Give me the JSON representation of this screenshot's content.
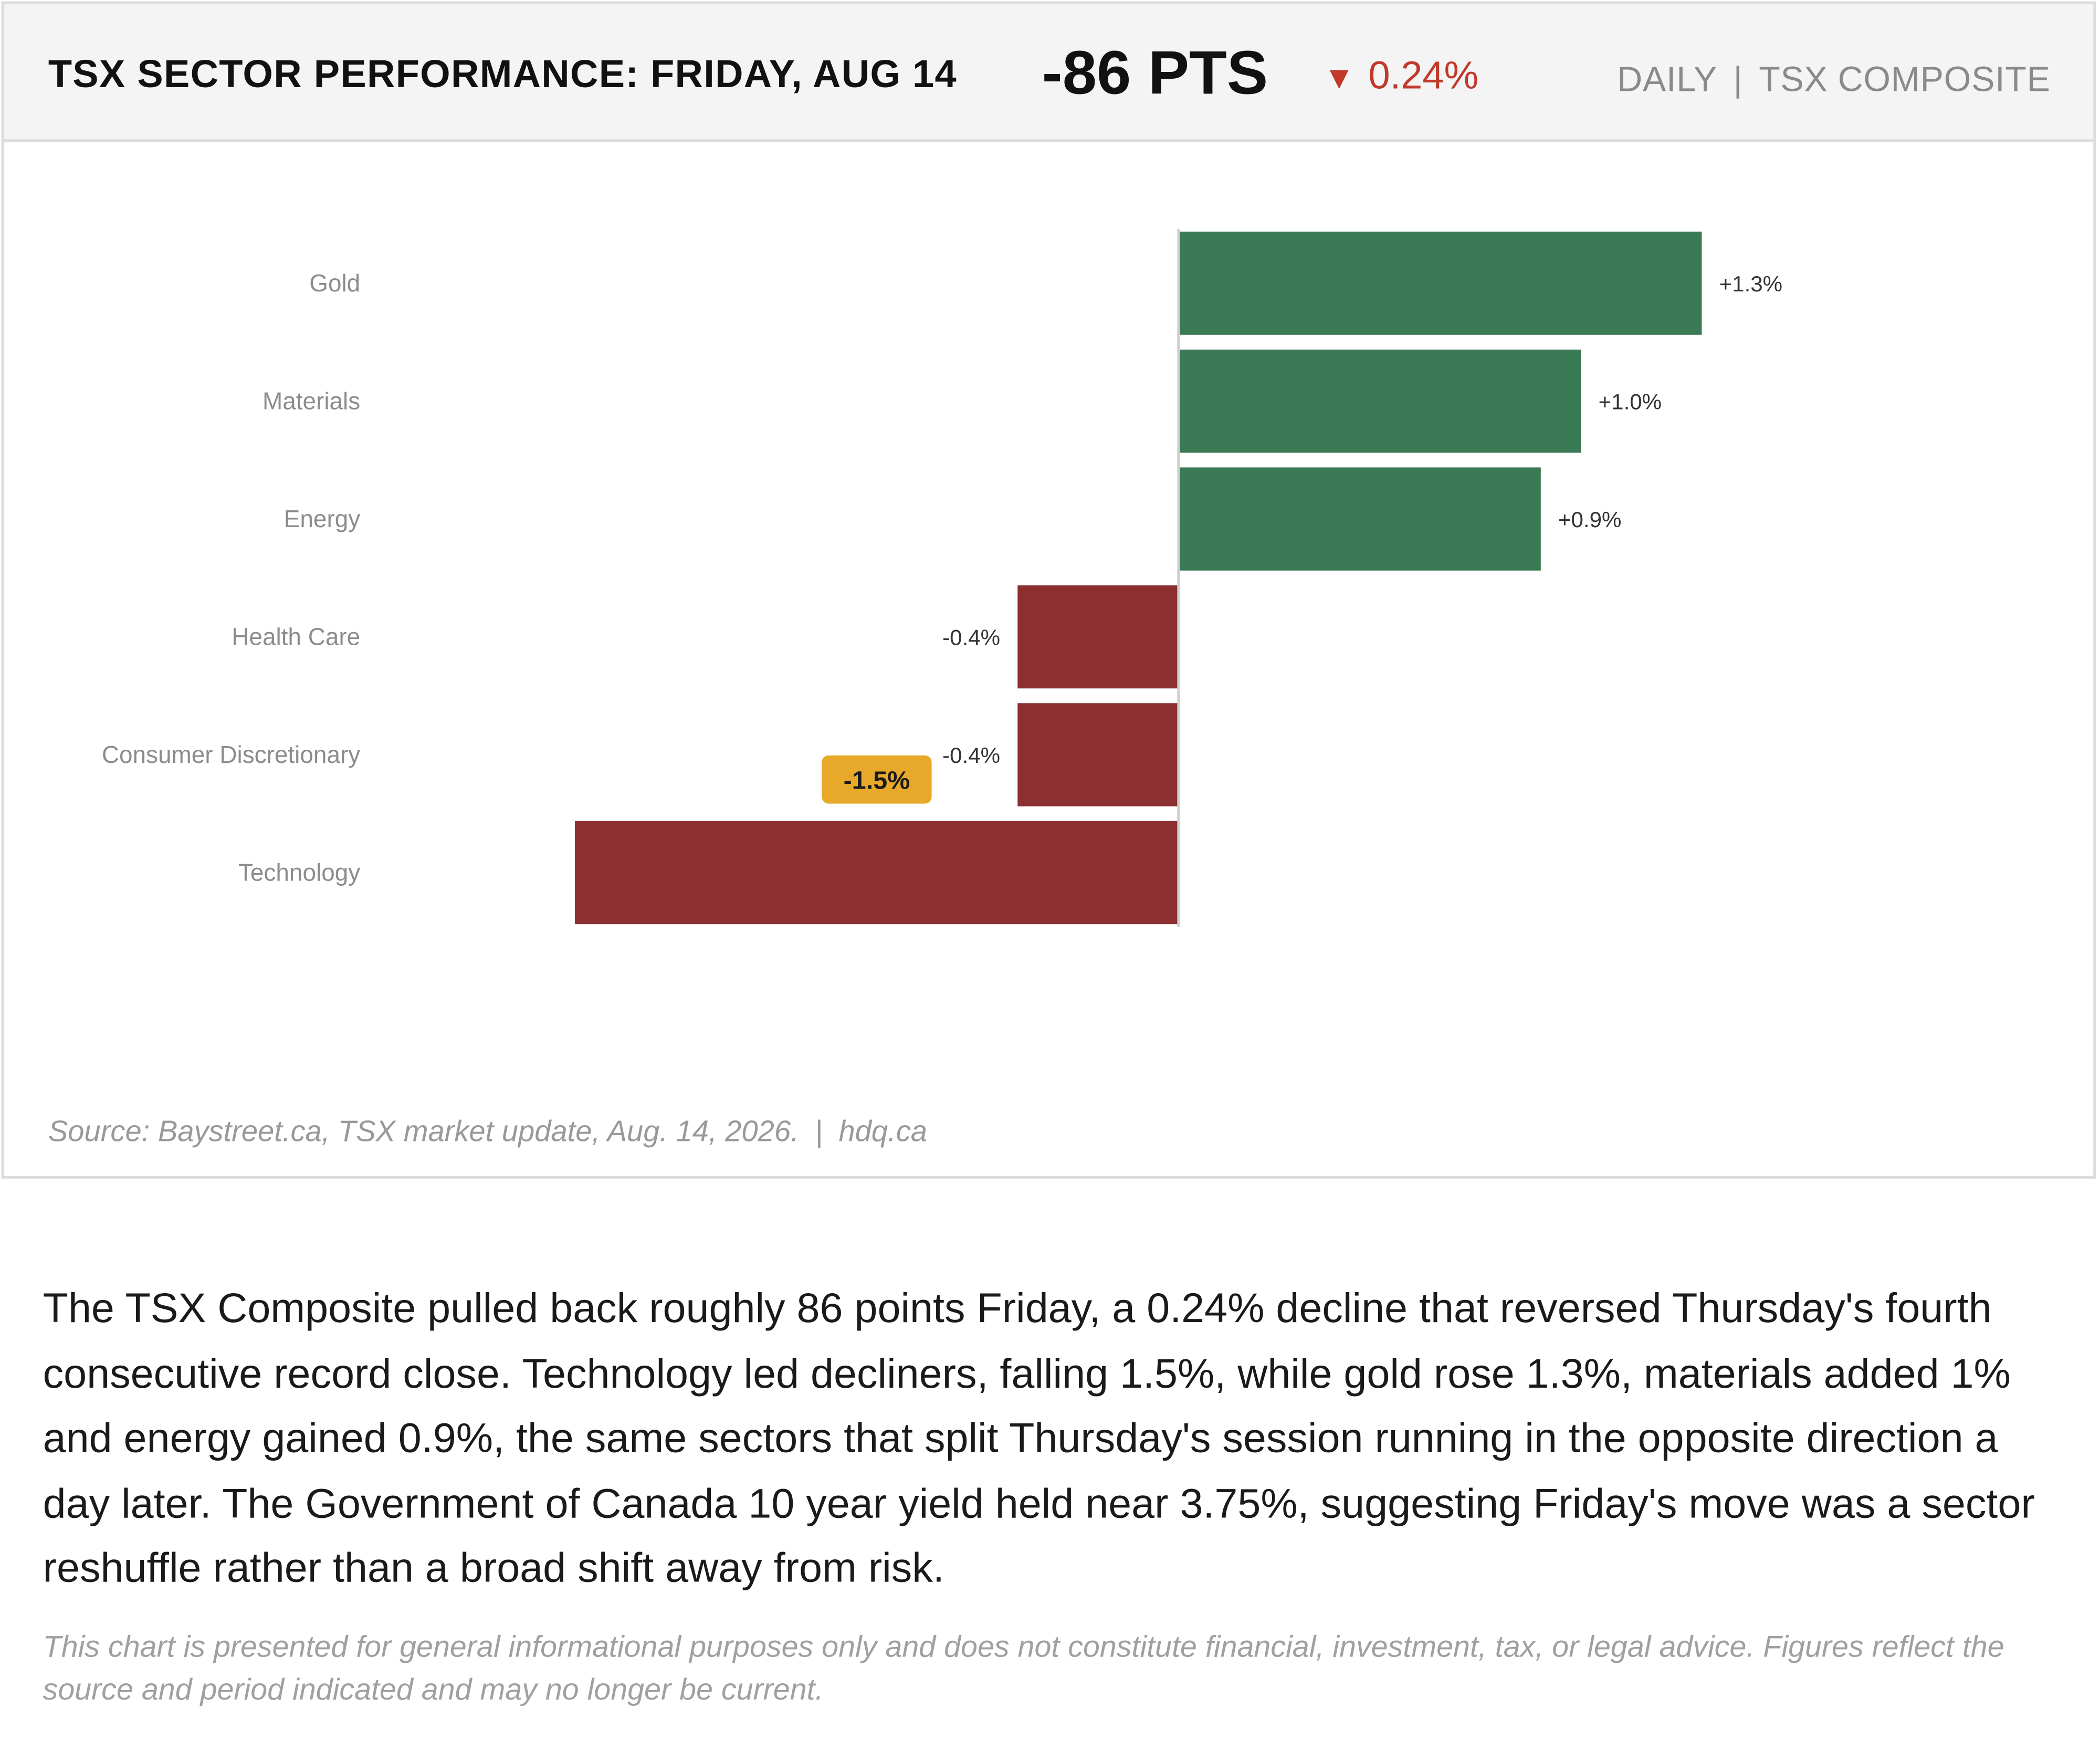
{
  "header": {
    "title": "TSX SECTOR PERFORMANCE: FRIDAY, AUG 14",
    "points": "-86 PTS",
    "change_arrow": "▼",
    "change_pct": "0.24%",
    "frequency": "DAILY",
    "separator": "|",
    "index": "TSX COMPOSITE"
  },
  "chart_data": {
    "type": "bar",
    "orientation": "horizontal",
    "categories": [
      "Gold",
      "Materials",
      "Energy",
      "Health Care",
      "Consumer Discretionary",
      "Technology"
    ],
    "values": [
      1.3,
      1.0,
      0.9,
      -0.4,
      -0.4,
      -1.5
    ],
    "value_labels": [
      "+1.3%",
      "+1.0%",
      "+0.9%",
      "-0.4%",
      "-0.4%",
      ""
    ],
    "highlight": {
      "category": "Technology",
      "label": "-1.5%",
      "color": "#e8a92b"
    },
    "colors": {
      "positive": "#3a7b56",
      "negative": "#8b2f31"
    },
    "xlim": [
      -2.1,
      2.2
    ],
    "grid": false,
    "legend": "none"
  },
  "source": {
    "text": "Source: Baystreet.ca, TSX market update, Aug. 14, 2026.",
    "separator": "|",
    "site": "hdq.ca"
  },
  "body": {
    "paragraph": "The TSX Composite pulled back roughly 86 points Friday, a 0.24% decline that reversed Thursday's fourth consecutive record close. Technology led decliners, falling 1.5%, while gold rose 1.3%, materials added 1% and energy gained 0.9%, the same sectors that split Thursday's session running in the opposite direction a day later. The Government of Canada 10 year yield held near 3.75%, suggesting Friday's move was a sector reshuffle rather than a broad shift away from risk."
  },
  "disclaimer": "This chart is presented for general informational purposes only and does not constitute financial, investment, tax, or legal advice. Figures reflect the source and period indicated and may no longer be current."
}
